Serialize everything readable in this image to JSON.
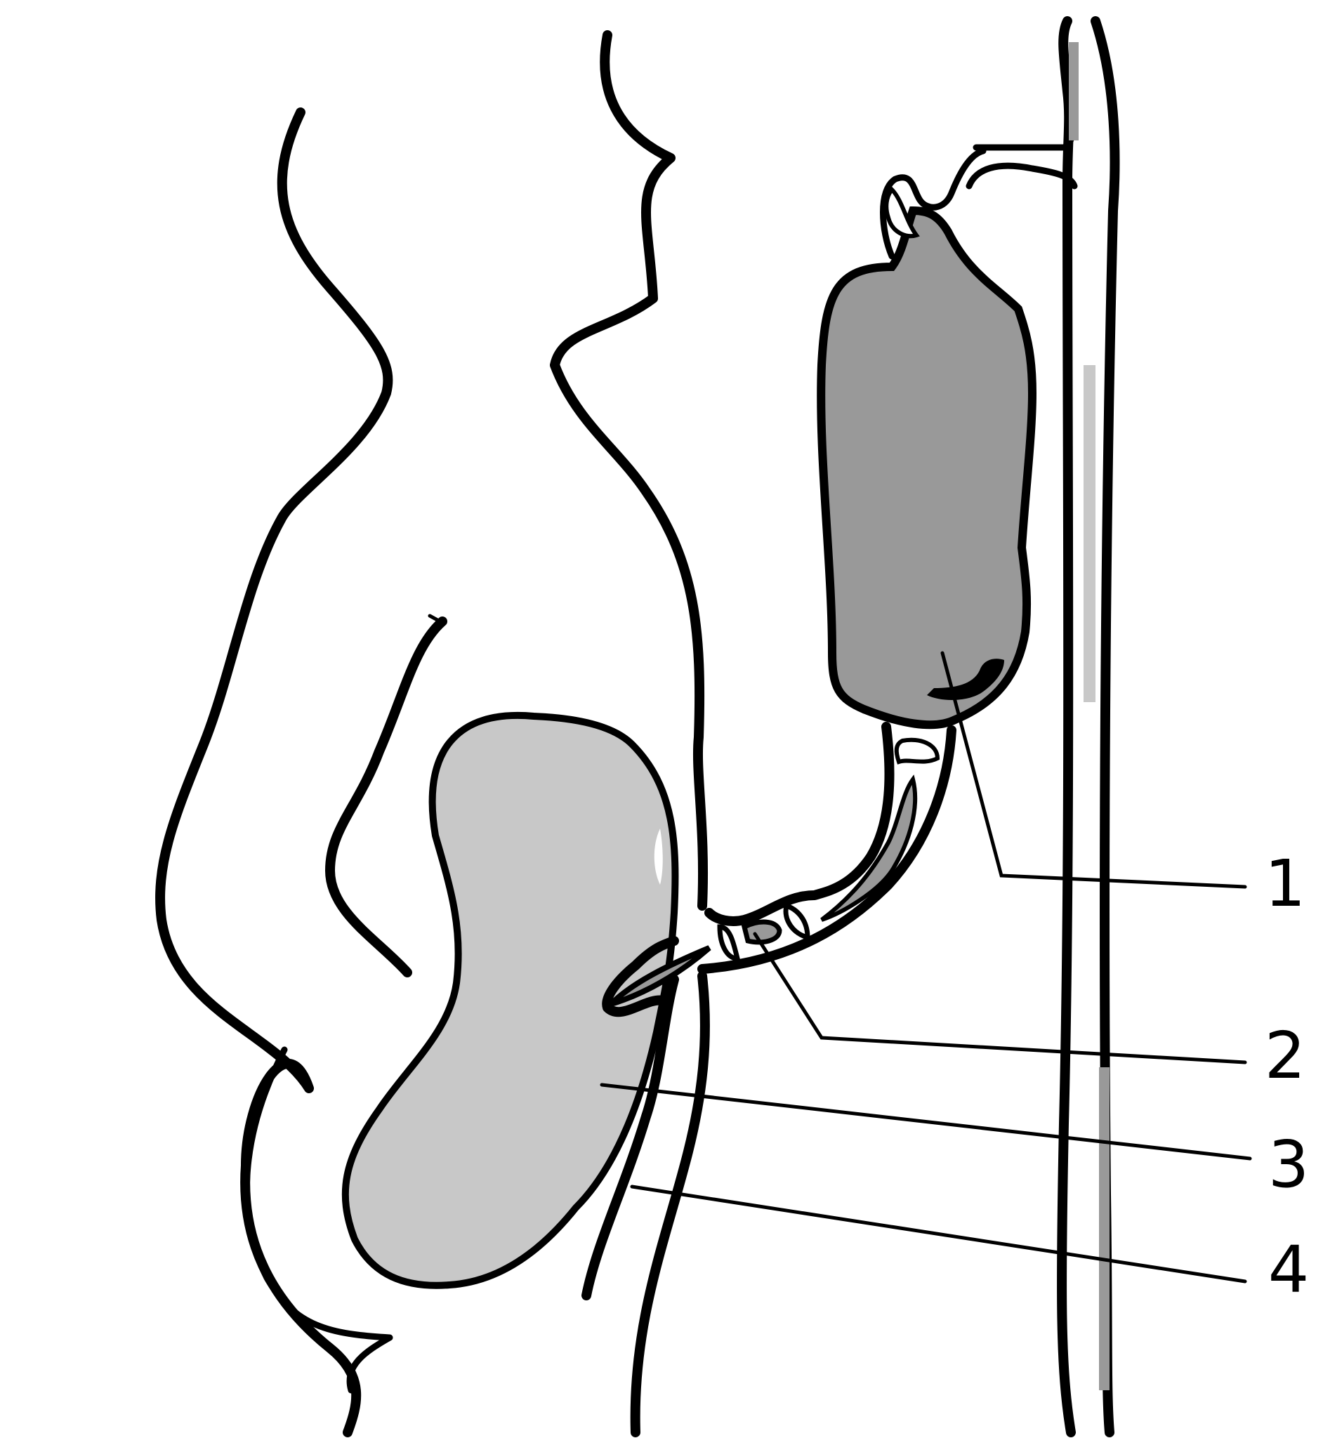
{
  "colors": {
    "background": "#ffffff",
    "stroke": "#000000",
    "dark_organ_fill": "#999999",
    "light_organ_fill": "#c8c8c8",
    "highlight_fill": "#ffffff"
  },
  "labels": [
    {
      "id": "1",
      "text": "1"
    },
    {
      "id": "2",
      "text": "2"
    },
    {
      "id": "3",
      "text": "3"
    },
    {
      "id": "4",
      "text": "4"
    }
  ]
}
